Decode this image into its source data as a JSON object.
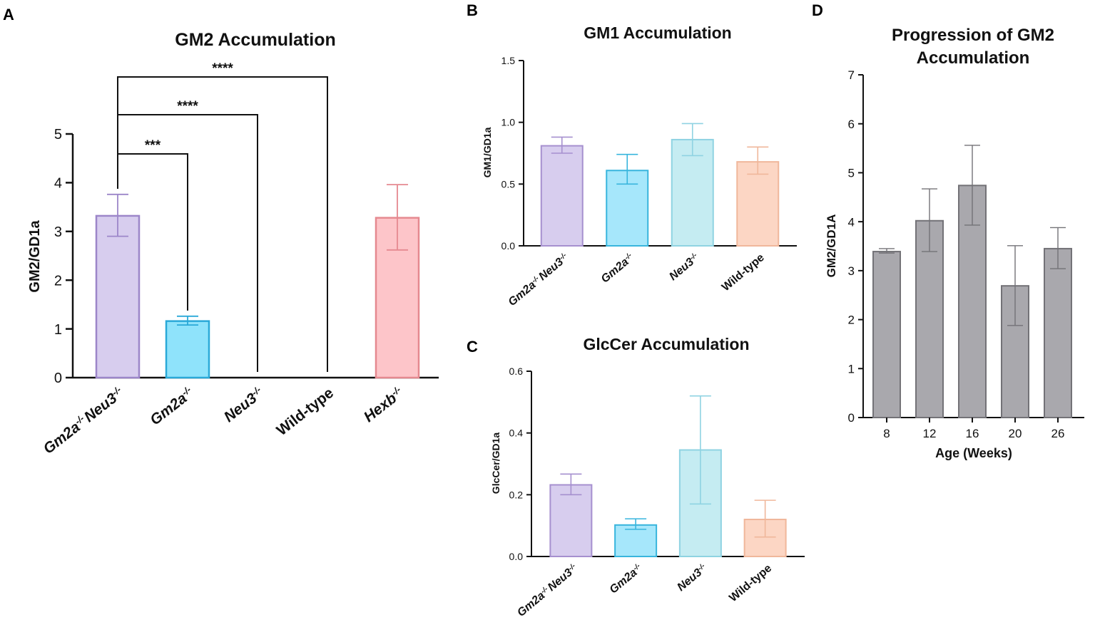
{
  "panels": {
    "A": "A",
    "B": "B",
    "C": "C",
    "D": "D"
  },
  "chart_data": [
    {
      "id": "A",
      "type": "bar",
      "title": "GM2 Accumulation",
      "ylabel": "GM2/GD1a",
      "xlabel": "",
      "ylim": [
        0,
        5
      ],
      "yticks": [
        "0",
        "1",
        "2",
        "3",
        "4",
        "5"
      ],
      "categories": [
        {
          "label": "Gm2a",
          "sup": "-/-",
          "label2": "Neu3",
          "sup2": "-/-",
          "italic": true
        },
        {
          "label": "Gm2a",
          "sup": "-/-",
          "italic": true
        },
        {
          "label": "Neu3",
          "sup": "-/-",
          "italic": true
        },
        {
          "label": "Wild-type",
          "italic": false
        },
        {
          "label": "Hexb",
          "sup": "-/-",
          "italic": true
        }
      ],
      "values": [
        3.32,
        1.16,
        0,
        0,
        3.28
      ],
      "error_low": [
        2.9,
        1.08,
        0,
        0,
        2.62
      ],
      "error_high": [
        3.76,
        1.26,
        0,
        0,
        3.96
      ],
      "colors": {
        "fill": [
          "#d7cdee",
          "#8fe3fb",
          "#ffffff",
          "#ffffff",
          "#fdc5c9"
        ],
        "stroke": [
          "#9c86c9",
          "#2aa9d8",
          "#ffffff",
          "#ffffff",
          "#e58990"
        ]
      },
      "significance": [
        {
          "text": "***",
          "from": 0,
          "to": 1
        },
        {
          "text": "****",
          "from": 0,
          "to": 2
        },
        {
          "text": "****",
          "from": 0,
          "to": 3
        }
      ]
    },
    {
      "id": "B",
      "type": "bar",
      "title": "GM1 Accumulation",
      "ylabel": "GM1/GD1a",
      "xlabel": "",
      "ylim": [
        0,
        1.5
      ],
      "yticks": [
        "0.0",
        "0.5",
        "1.0",
        "1.5"
      ],
      "categories": [
        {
          "label": "Gm2a",
          "sup": "-/-",
          "label2": "Neu3",
          "sup2": "-/-",
          "italic": true
        },
        {
          "label": "Gm2a",
          "sup": "-/-",
          "italic": true
        },
        {
          "label": "Neu3",
          "sup": "-/-",
          "italic": true
        },
        {
          "label": "Wild-type",
          "italic": false
        }
      ],
      "values": [
        0.81,
        0.61,
        0.86,
        0.68
      ],
      "error_low": [
        0.75,
        0.5,
        0.73,
        0.58
      ],
      "error_high": [
        0.88,
        0.74,
        0.99,
        0.8
      ],
      "colors": {
        "fill": [
          "#d7cdee",
          "#a6e7fb",
          "#c5ecf2",
          "#fcd6c4"
        ],
        "stroke": [
          "#a690cf",
          "#38b5dd",
          "#8fd3e2",
          "#f0b79b"
        ]
      }
    },
    {
      "id": "C",
      "type": "bar",
      "title": "GlcCer Accumulation",
      "ylabel": "GlcCer/GD1a",
      "xlabel": "",
      "ylim": [
        0,
        0.6
      ],
      "yticks": [
        "0.0",
        "0.2",
        "0.4",
        "0.6"
      ],
      "categories": [
        {
          "label": "Gm2a",
          "sup": "-/-",
          "label2": "Neu3",
          "sup2": "-/-",
          "italic": true
        },
        {
          "label": "Gm2a",
          "sup": "-/-",
          "italic": true
        },
        {
          "label": "Neu3",
          "sup": "-/-",
          "italic": true
        },
        {
          "label": "Wild-type",
          "italic": false
        }
      ],
      "values": [
        0.232,
        0.102,
        0.345,
        0.12
      ],
      "error_low": [
        0.2,
        0.088,
        0.17,
        0.063
      ],
      "error_high": [
        0.267,
        0.122,
        0.52,
        0.182
      ],
      "colors": {
        "fill": [
          "#d7cdee",
          "#a6e7fb",
          "#c5ecf2",
          "#fcd6c4"
        ],
        "stroke": [
          "#a690cf",
          "#38b5dd",
          "#8fd3e2",
          "#f0b79b"
        ]
      }
    },
    {
      "id": "D",
      "type": "bar",
      "title": "Progression of GM2 Accumulation",
      "title_lines": [
        "Progression of GM2",
        "Accumulation"
      ],
      "ylabel": "GM2/GD1A",
      "xlabel": "Age (Weeks)",
      "ylim": [
        0,
        7
      ],
      "yticks": [
        "0",
        "1",
        "2",
        "3",
        "4",
        "5",
        "6",
        "7"
      ],
      "categories": [
        {
          "label": "8",
          "italic": false
        },
        {
          "label": "12",
          "italic": false
        },
        {
          "label": "16",
          "italic": false
        },
        {
          "label": "20",
          "italic": false
        },
        {
          "label": "26",
          "italic": false
        }
      ],
      "values": [
        3.39,
        4.02,
        4.74,
        2.69,
        3.45
      ],
      "error_low": [
        3.36,
        3.39,
        3.93,
        1.88,
        3.04
      ],
      "error_high": [
        3.45,
        4.67,
        5.56,
        3.51,
        3.88
      ],
      "colors": {
        "fill": [
          "#a9a8ad",
          "#a9a8ad",
          "#a9a8ad",
          "#a9a8ad",
          "#a9a8ad"
        ],
        "stroke": [
          "#737277",
          "#737277",
          "#737277",
          "#737277",
          "#737277"
        ]
      }
    }
  ]
}
